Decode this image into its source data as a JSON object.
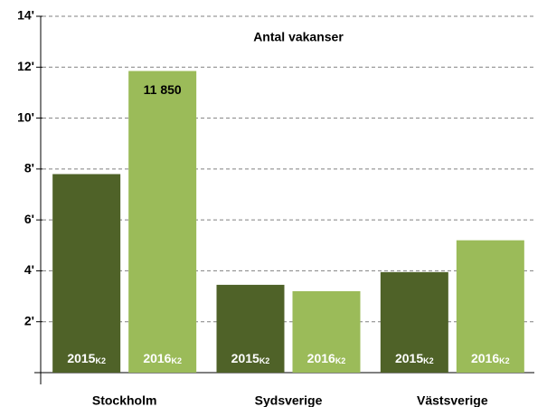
{
  "chart_data": {
    "type": "bar",
    "title": "Antal vakanser",
    "categories": [
      "Stockholm",
      "Sydsverige",
      "Västsverige"
    ],
    "series": [
      {
        "name": "2015",
        "subscript": "K2",
        "color": "#4f6228",
        "values": [
          7800,
          3450,
          3950
        ]
      },
      {
        "name": "2016",
        "subscript": "K2",
        "color": "#9bbb59",
        "values": [
          11850,
          3200,
          5200
        ],
        "value_labels": [
          "11 850",
          null,
          null
        ]
      }
    ],
    "ylim": [
      0,
      14000
    ],
    "yticks": [
      {
        "value": 2000,
        "label": "2'"
      },
      {
        "value": 4000,
        "label": "4'"
      },
      {
        "value": 6000,
        "label": "6'"
      },
      {
        "value": 8000,
        "label": "8'"
      },
      {
        "value": 10000,
        "label": "10'"
      },
      {
        "value": 12000,
        "label": "12'"
      },
      {
        "value": 14000,
        "label": "14'"
      }
    ],
    "grid": true
  }
}
